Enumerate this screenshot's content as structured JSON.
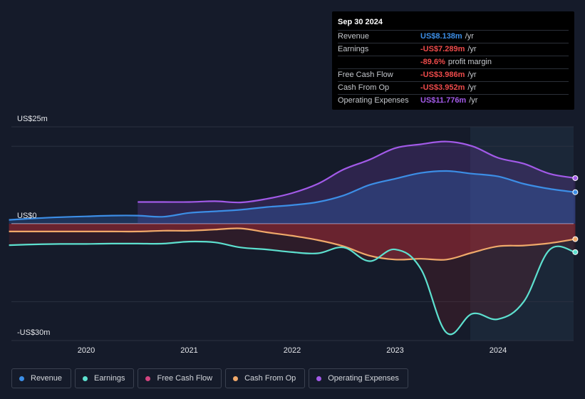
{
  "tooltip": {
    "date": "Sep 30 2024",
    "rows": [
      {
        "label": "Revenue",
        "value": "US$8.138m",
        "unit": "/yr",
        "color": "#3c8ee6"
      },
      {
        "label": "Earnings",
        "value": "-US$7.289m",
        "unit": "/yr",
        "color": "#ef4b4b"
      },
      {
        "label": "",
        "value": "-89.6%",
        "unit": "profit margin",
        "color": "#ef4b4b"
      },
      {
        "label": "Free Cash Flow",
        "value": "-US$3.986m",
        "unit": "/yr",
        "color": "#ef4b4b"
      },
      {
        "label": "Cash From Op",
        "value": "-US$3.952m",
        "unit": "/yr",
        "color": "#ef4b4b"
      },
      {
        "label": "Operating Expenses",
        "value": "US$11.776m",
        "unit": "/yr",
        "color": "#a25ae8"
      }
    ]
  },
  "legend": [
    {
      "label": "Revenue",
      "color": "#3c8ee6"
    },
    {
      "label": "Earnings",
      "color": "#5de0cf"
    },
    {
      "label": "Free Cash Flow",
      "color": "#d2447f"
    },
    {
      "label": "Cash From Op",
      "color": "#f0a96a"
    },
    {
      "label": "Operating Expenses",
      "color": "#a25ae8"
    }
  ],
  "chart_data": {
    "type": "area",
    "ylim": [
      -30,
      25
    ],
    "y_tick_labels": [
      {
        "value": 25,
        "label": "US$25m"
      },
      {
        "value": 0,
        "label": "US$0"
      },
      {
        "value": -30,
        "label": "-US$30m"
      }
    ],
    "x_ticks": [
      {
        "value": 2020,
        "label": "2020"
      },
      {
        "value": 2021,
        "label": "2021"
      },
      {
        "value": 2022,
        "label": "2022"
      },
      {
        "value": 2023,
        "label": "2023"
      },
      {
        "value": 2024,
        "label": "2024"
      }
    ],
    "xlim": [
      2019.25,
      2024.75
    ],
    "forecast_start": 2023.73,
    "series": [
      {
        "name": "Operating Expenses",
        "color": "#a25ae8",
        "x": [
          2020.5,
          2020.75,
          2021.0,
          2021.25,
          2021.5,
          2021.75,
          2022.0,
          2022.25,
          2022.5,
          2022.75,
          2023.0,
          2023.25,
          2023.5,
          2023.75,
          2024.0,
          2024.25,
          2024.5,
          2024.75
        ],
        "values": [
          5.6,
          5.6,
          5.6,
          5.8,
          5.5,
          6.4,
          7.9,
          10.3,
          14.0,
          16.5,
          19.5,
          20.5,
          21.2,
          20.0,
          17.0,
          15.5,
          12.9,
          11.776
        ]
      },
      {
        "name": "Revenue",
        "color": "#3c8ee6",
        "x": [
          2019.25,
          2019.5,
          2019.75,
          2020.0,
          2020.25,
          2020.5,
          2020.75,
          2021.0,
          2021.25,
          2021.5,
          2021.75,
          2022.0,
          2022.25,
          2022.5,
          2022.75,
          2023.0,
          2023.25,
          2023.5,
          2023.75,
          2024.0,
          2024.25,
          2024.5,
          2024.75
        ],
        "values": [
          1.0,
          1.4,
          1.7,
          1.9,
          2.1,
          2.1,
          1.8,
          2.8,
          3.2,
          3.6,
          4.3,
          4.8,
          5.6,
          7.3,
          10.0,
          11.6,
          13.1,
          13.6,
          12.9,
          12.2,
          10.3,
          9.0,
          8.138
        ]
      },
      {
        "name": "Cash From Op",
        "color": "#f0a96a",
        "x": [
          2019.25,
          2019.5,
          2019.75,
          2020.0,
          2020.25,
          2020.5,
          2020.75,
          2021.0,
          2021.25,
          2021.5,
          2021.75,
          2022.0,
          2022.25,
          2022.5,
          2022.75,
          2023.0,
          2023.25,
          2023.5,
          2023.75,
          2024.0,
          2024.25,
          2024.5,
          2024.75
        ],
        "values": [
          -2.0,
          -2.0,
          -2.0,
          -2.0,
          -2.0,
          -2.0,
          -1.8,
          -1.8,
          -1.5,
          -1.2,
          -2.2,
          -3.1,
          -4.2,
          -5.8,
          -8.2,
          -9.2,
          -9.0,
          -9.2,
          -7.4,
          -5.8,
          -5.6,
          -5.0,
          -3.952
        ]
      },
      {
        "name": "Earnings",
        "color": "#5de0cf",
        "x": [
          2019.25,
          2019.5,
          2019.75,
          2020.0,
          2020.25,
          2020.5,
          2020.75,
          2021.0,
          2021.25,
          2021.5,
          2021.75,
          2022.0,
          2022.25,
          2022.5,
          2022.75,
          2023.0,
          2023.25,
          2023.5,
          2023.75,
          2024.0,
          2024.25,
          2024.5,
          2024.75
        ],
        "values": [
          -5.5,
          -5.3,
          -5.2,
          -5.2,
          -5.1,
          -5.1,
          -5.1,
          -4.6,
          -4.8,
          -6.1,
          -6.6,
          -7.3,
          -7.6,
          -6.1,
          -9.6,
          -6.6,
          -11.6,
          -28.0,
          -23.1,
          -24.5,
          -20.0,
          -6.7,
          -7.289
        ]
      }
    ]
  }
}
